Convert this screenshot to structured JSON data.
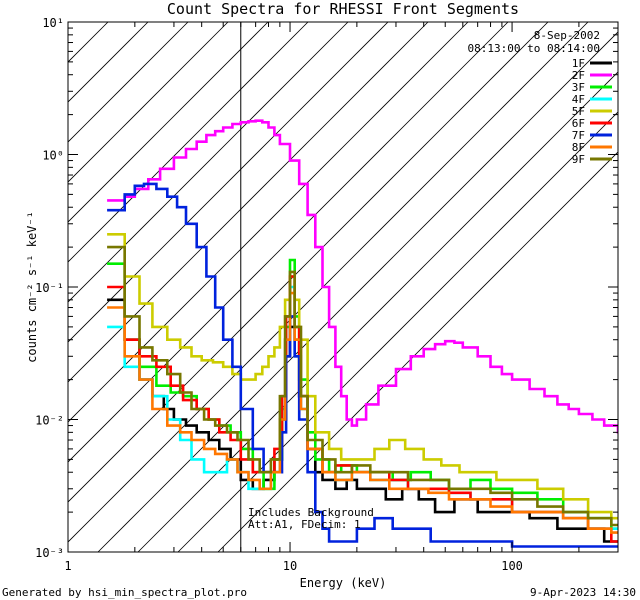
{
  "chart_data": {
    "type": "line",
    "title": "Count Spectra for RHESSI Front Segments",
    "xlabel": "Energy (keV)",
    "ylabel": "counts cm⁻² s⁻¹ keV⁻¹",
    "xscale": "log",
    "yscale": "log",
    "xlim": [
      1,
      300
    ],
    "ylim": [
      0.001,
      10
    ],
    "x_ticks": [
      {
        "value": 1,
        "label": "1"
      },
      {
        "value": 10,
        "label": "10"
      },
      {
        "value": 100,
        "label": "100"
      }
    ],
    "y_ticks": [
      {
        "value": 10,
        "label": "10¹"
      },
      {
        "value": 1,
        "label": "10⁰"
      },
      {
        "value": 0.1,
        "label": "10⁻¹"
      },
      {
        "value": 0.01,
        "label": "10⁻²"
      },
      {
        "value": 0.001,
        "label": "10⁻³"
      }
    ],
    "date": "8-Sep-2002",
    "time_range": "08:13:00 to 08:14:00",
    "hatched_region": {
      "xmin": 1,
      "xmax": 6
    },
    "annotation_lines": [
      "Includes Background",
      "Att:A1, FDecim: 1"
    ],
    "series": [
      {
        "name": "1F",
        "color": "#000000",
        "x": [
          1.5,
          1.8,
          2.1,
          2.4,
          2.7,
          3.0,
          3.4,
          3.8,
          4.3,
          4.8,
          5.4,
          6.0,
          6.8,
          7.6,
          8.5,
          9.2,
          9.6,
          10.0,
          10.5,
          11.0,
          12.0,
          13.0,
          14.0,
          16.0,
          18.0,
          20.0,
          23.0,
          27.0,
          32.0,
          38.0,
          45.0,
          55.0,
          70.0,
          90.0,
          120.0,
          160.0,
          200.0,
          260.0
        ],
        "y": [
          0.08,
          0.04,
          0.02,
          0.015,
          0.012,
          0.01,
          0.009,
          0.008,
          0.007,
          0.006,
          0.005,
          0.0035,
          0.003,
          0.0035,
          0.005,
          0.01,
          0.03,
          0.05,
          0.04,
          0.015,
          0.006,
          0.004,
          0.0035,
          0.003,
          0.0035,
          0.003,
          0.003,
          0.0025,
          0.003,
          0.0025,
          0.002,
          0.0025,
          0.002,
          0.002,
          0.0018,
          0.0015,
          0.0015,
          0.0012
        ]
      },
      {
        "name": "2F",
        "color": "#ff00ff",
        "x": [
          1.5,
          1.8,
          2.0,
          2.3,
          2.6,
          3.0,
          3.4,
          3.8,
          4.2,
          4.6,
          5.0,
          5.5,
          6.0,
          6.5,
          7.0,
          7.5,
          8.0,
          8.5,
          9.0,
          10.0,
          11.0,
          12.0,
          13.0,
          14.0,
          15.0,
          16.0,
          17.0,
          18.0,
          19.0,
          20.0,
          22.0,
          25.0,
          30.0,
          35.0,
          40.0,
          45.0,
          50.0,
          55.0,
          60.0,
          70.0,
          80.0,
          90.0,
          100.0,
          120.0,
          140.0,
          160.0,
          180.0,
          200.0,
          230.0,
          260.0,
          300.0
        ],
        "y": [
          0.45,
          0.48,
          0.55,
          0.65,
          0.78,
          0.95,
          1.1,
          1.25,
          1.4,
          1.5,
          1.6,
          1.7,
          1.75,
          1.78,
          1.8,
          1.75,
          1.6,
          1.4,
          1.2,
          0.9,
          0.6,
          0.35,
          0.2,
          0.1,
          0.05,
          0.025,
          0.015,
          0.01,
          0.009,
          0.01,
          0.013,
          0.018,
          0.024,
          0.03,
          0.034,
          0.037,
          0.039,
          0.038,
          0.035,
          0.03,
          0.025,
          0.022,
          0.02,
          0.017,
          0.015,
          0.013,
          0.012,
          0.011,
          0.01,
          0.009,
          0.008
        ]
      },
      {
        "name": "3F",
        "color": "#00ee00",
        "x": [
          1.5,
          1.8,
          2.1,
          2.5,
          2.9,
          3.3,
          3.8,
          4.3,
          4.8,
          5.4,
          6.0,
          6.8,
          7.6,
          8.5,
          9.2,
          9.6,
          10.0,
          10.5,
          11.0,
          12.0,
          13.0,
          15.0,
          17.0,
          20.0,
          24.0,
          29.0,
          35.0,
          43.0,
          52.0,
          65.0,
          80.0,
          100.0,
          130.0,
          170.0,
          220.0,
          280.0
        ],
        "y": [
          0.15,
          0.04,
          0.025,
          0.018,
          0.016,
          0.015,
          0.012,
          0.01,
          0.009,
          0.008,
          0.006,
          0.004,
          0.003,
          0.005,
          0.012,
          0.05,
          0.16,
          0.06,
          0.02,
          0.008,
          0.005,
          0.004,
          0.0045,
          0.004,
          0.004,
          0.0035,
          0.004,
          0.0035,
          0.003,
          0.0035,
          0.003,
          0.0028,
          0.0025,
          0.002,
          0.0018,
          0.0015
        ]
      },
      {
        "name": "4F",
        "color": "#00ffff",
        "x": [
          1.5,
          1.8,
          2.1,
          2.4,
          2.8,
          3.2,
          3.6,
          4.1,
          4.6,
          5.2,
          5.8,
          6.5,
          7.3,
          8.2,
          9.0,
          9.5,
          10.0,
          10.5,
          11.2,
          12.0,
          14.0,
          16.0,
          19.0,
          23.0,
          28.0,
          34.0,
          42.0,
          52.0,
          65.0,
          80.0,
          100.0,
          130.0,
          170.0,
          220.0,
          280.0
        ],
        "y": [
          0.05,
          0.025,
          0.02,
          0.015,
          0.01,
          0.007,
          0.005,
          0.004,
          0.004,
          0.005,
          0.004,
          0.003,
          0.003,
          0.004,
          0.01,
          0.04,
          0.1,
          0.03,
          0.012,
          0.006,
          0.004,
          0.0035,
          0.004,
          0.0035,
          0.0035,
          0.003,
          0.003,
          0.0028,
          0.0025,
          0.0025,
          0.002,
          0.002,
          0.0018,
          0.0015,
          0.0015
        ]
      },
      {
        "name": "5F",
        "color": "#cccc00",
        "x": [
          1.5,
          1.8,
          2.1,
          2.4,
          2.8,
          3.2,
          3.6,
          4.0,
          4.5,
          5.0,
          5.5,
          6.0,
          6.5,
          7.0,
          7.5,
          8.0,
          8.5,
          9.0,
          9.5,
          10.0,
          10.5,
          11.0,
          12.0,
          13.0,
          15.0,
          17.0,
          20.0,
          24.0,
          28.0,
          33.0,
          40.0,
          48.0,
          58.0,
          70.0,
          85.0,
          100.0,
          130.0,
          170.0,
          220.0,
          280.0
        ],
        "y": [
          0.25,
          0.12,
          0.075,
          0.05,
          0.04,
          0.035,
          0.03,
          0.028,
          0.027,
          0.025,
          0.022,
          0.02,
          0.02,
          0.022,
          0.025,
          0.03,
          0.035,
          0.05,
          0.08,
          0.12,
          0.08,
          0.04,
          0.015,
          0.008,
          0.006,
          0.005,
          0.005,
          0.006,
          0.007,
          0.006,
          0.005,
          0.0045,
          0.004,
          0.004,
          0.0035,
          0.0035,
          0.003,
          0.0025,
          0.002,
          0.0018
        ]
      },
      {
        "name": "6F",
        "color": "#ff0000",
        "x": [
          1.5,
          1.8,
          2.1,
          2.5,
          2.9,
          3.3,
          3.8,
          4.3,
          4.8,
          5.4,
          6.0,
          6.8,
          7.6,
          8.5,
          9.2,
          9.6,
          10.0,
          10.5,
          11.0,
          12.0,
          14.0,
          16.0,
          19.0,
          23.0,
          28.0,
          34.0,
          42.0,
          52.0,
          65.0,
          80.0,
          100.0,
          130.0,
          170.0,
          220.0,
          280.0
        ],
        "y": [
          0.1,
          0.04,
          0.03,
          0.025,
          0.018,
          0.014,
          0.012,
          0.01,
          0.008,
          0.007,
          0.005,
          0.004,
          0.004,
          0.006,
          0.015,
          0.06,
          0.12,
          0.05,
          0.015,
          0.006,
          0.004,
          0.0045,
          0.004,
          0.004,
          0.0035,
          0.003,
          0.003,
          0.0028,
          0.0025,
          0.0025,
          0.002,
          0.002,
          0.0018,
          0.0015,
          0.0012
        ]
      },
      {
        "name": "7F",
        "color": "#0022dd",
        "x": [
          1.5,
          1.8,
          2.0,
          2.2,
          2.5,
          2.8,
          3.1,
          3.4,
          3.8,
          4.2,
          4.6,
          5.0,
          5.5,
          6.0,
          6.8,
          7.6,
          8.5,
          9.2,
          9.6,
          10.0,
          10.5,
          11.0,
          12.0,
          13.0,
          14.0,
          15.0,
          17.0,
          20.0,
          24.0,
          29.0,
          35.0,
          43.0,
          52.0,
          65.0,
          80.0,
          100.0,
          130.0,
          170.0,
          220.0,
          280.0
        ],
        "y": [
          0.38,
          0.5,
          0.58,
          0.6,
          0.55,
          0.48,
          0.4,
          0.3,
          0.2,
          0.12,
          0.07,
          0.04,
          0.025,
          0.012,
          0.006,
          0.004,
          0.004,
          0.008,
          0.03,
          0.06,
          0.03,
          0.01,
          0.004,
          0.002,
          0.0015,
          0.0012,
          0.0012,
          0.0015,
          0.0018,
          0.0015,
          0.0015,
          0.0012,
          0.0012,
          0.0012,
          0.0012,
          0.0011,
          0.0011,
          0.0011,
          0.0011,
          0.0011
        ]
      },
      {
        "name": "8F",
        "color": "#ff7700",
        "x": [
          1.5,
          1.8,
          2.1,
          2.4,
          2.8,
          3.2,
          3.6,
          4.1,
          4.6,
          5.2,
          5.8,
          6.5,
          7.3,
          8.2,
          9.0,
          9.5,
          10.0,
          10.5,
          11.2,
          12.0,
          14.0,
          16.0,
          19.0,
          23.0,
          28.0,
          34.0,
          42.0,
          52.0,
          65.0,
          80.0,
          100.0,
          130.0,
          170.0,
          220.0,
          280.0
        ],
        "y": [
          0.07,
          0.03,
          0.02,
          0.012,
          0.009,
          0.008,
          0.007,
          0.006,
          0.0055,
          0.005,
          0.004,
          0.0035,
          0.003,
          0.004,
          0.01,
          0.04,
          0.09,
          0.04,
          0.012,
          0.006,
          0.004,
          0.0035,
          0.004,
          0.0035,
          0.003,
          0.003,
          0.0028,
          0.0025,
          0.0025,
          0.0022,
          0.002,
          0.002,
          0.0018,
          0.0015,
          0.0014
        ]
      },
      {
        "name": "9F",
        "color": "#777700",
        "x": [
          1.5,
          1.8,
          2.1,
          2.4,
          2.8,
          3.2,
          3.6,
          4.1,
          4.6,
          5.2,
          5.8,
          6.5,
          7.3,
          8.2,
          9.0,
          9.5,
          10.0,
          10.5,
          11.2,
          12.0,
          14.0,
          16.0,
          19.0,
          23.0,
          28.0,
          34.0,
          42.0,
          52.0,
          65.0,
          80.0,
          100.0,
          130.0,
          170.0,
          220.0,
          280.0
        ],
        "y": [
          0.2,
          0.06,
          0.035,
          0.028,
          0.022,
          0.016,
          0.012,
          0.01,
          0.009,
          0.008,
          0.007,
          0.005,
          0.004,
          0.005,
          0.015,
          0.06,
          0.13,
          0.05,
          0.015,
          0.007,
          0.005,
          0.004,
          0.0045,
          0.004,
          0.004,
          0.0035,
          0.0035,
          0.003,
          0.003,
          0.0028,
          0.0025,
          0.0022,
          0.002,
          0.0018,
          0.0016
        ]
      }
    ]
  },
  "footer": {
    "generated_by": "Generated by hsi_min_spectra_plot.pro",
    "timestamp": "9-Apr-2023 14:30"
  }
}
